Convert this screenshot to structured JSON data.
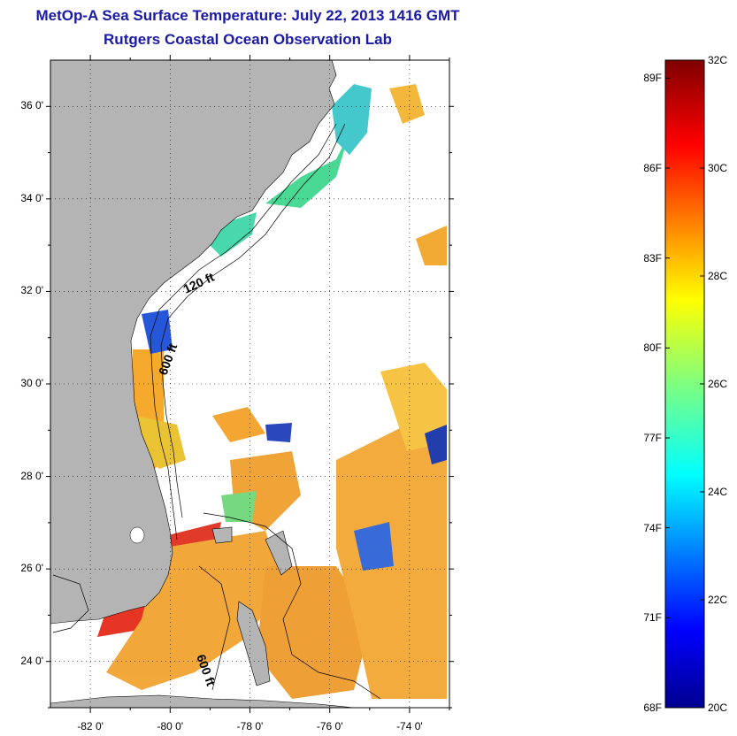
{
  "header": {
    "title": "MetOp-A Sea Surface Temperature:  July 22, 2013 1416 GMT",
    "subtitle": "Rutgers Coastal Ocean Observation Lab"
  },
  "map": {
    "lon_range": [
      -83,
      -73
    ],
    "lat_range": [
      23,
      37
    ],
    "lat_ticks": [
      {
        "value": 24,
        "label": "24 0'"
      },
      {
        "value": 26,
        "label": "26 0'"
      },
      {
        "value": 28,
        "label": "28 0'"
      },
      {
        "value": 30,
        "label": "30 0'"
      },
      {
        "value": 32,
        "label": "32 0'"
      },
      {
        "value": 34,
        "label": "34 0'"
      },
      {
        "value": 36,
        "label": "36 0'"
      }
    ],
    "lon_ticks": [
      {
        "value": -82,
        "label": "-82 0'"
      },
      {
        "value": -80,
        "label": "-80 0'"
      },
      {
        "value": -78,
        "label": "-78 0'"
      },
      {
        "value": -76,
        "label": "-76 0'"
      },
      {
        "value": -74,
        "label": "-74 0'"
      }
    ],
    "contour_labels": [
      "120 ft",
      "600 ft",
      "600 ft"
    ],
    "colors": {
      "land": "#b4b4b4",
      "ocean_missing": "#ffffff"
    }
  },
  "colorbar": {
    "range_c": [
      20,
      32
    ],
    "celsius_ticks": [
      "32C",
      "30C",
      "28C",
      "26C",
      "24C",
      "22C",
      "20C"
    ],
    "fahrenheit_ticks": [
      "89F",
      "86F",
      "83F",
      "80F",
      "77F",
      "74F",
      "71F",
      "68F"
    ],
    "colormap": "jet"
  }
}
